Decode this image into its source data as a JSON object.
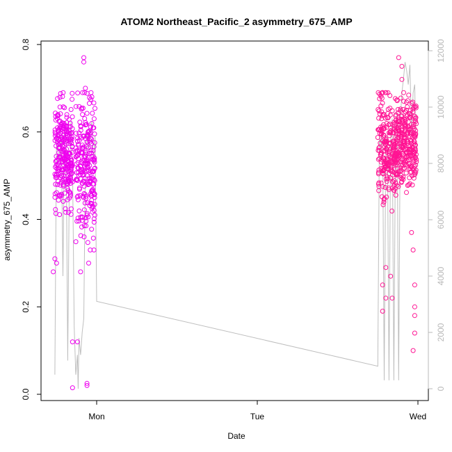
{
  "chart_data": {
    "type": "scatter",
    "title": "ATOM2 Northeast_Pacific_2 asymmetry_675_AMP",
    "xlabel": "Date",
    "ylabel": "asymmetry_675_AMP",
    "x_ticks": [
      "Mon",
      "Tue",
      "Wed"
    ],
    "x_range_days": [
      -0.3,
      2.02
    ],
    "ylim": [
      0.0,
      0.8
    ],
    "y_ticks": [
      "0.0",
      "0.2",
      "0.4",
      "0.6",
      "0.8"
    ],
    "y_tick_values": [
      0.0,
      0.2,
      0.4,
      0.6,
      0.8
    ],
    "y2lim": [
      0,
      12000
    ],
    "y2_ticks": [
      "0",
      "2000",
      "4000",
      "6000",
      "8000",
      "10000",
      "12000"
    ],
    "y2_tick_values": [
      0,
      2000,
      4000,
      6000,
      8000,
      10000,
      12000
    ],
    "colors": {
      "points_early": "#ee00ee",
      "points_late": "#ff1493",
      "line": "#bebebe",
      "right_axis": "#b8b8b8"
    },
    "scatter_clusters": [
      {
        "x_start": -0.26,
        "x_end": -0.15,
        "y_mean": 0.55,
        "y_spread": 0.06,
        "n": 260
      },
      {
        "x_start": -0.13,
        "x_end": -0.01,
        "y_mean": 0.52,
        "y_spread": 0.08,
        "n": 240
      },
      {
        "x_start": 1.75,
        "x_end": 1.87,
        "y_mean": 0.56,
        "y_spread": 0.06,
        "n": 240
      },
      {
        "x_start": 1.87,
        "x_end": 1.99,
        "y_mean": 0.58,
        "y_spread": 0.05,
        "n": 260
      }
    ],
    "scatter_outliers": [
      {
        "x": -0.27,
        "y": 0.28
      },
      {
        "x": -0.26,
        "y": 0.31
      },
      {
        "x": -0.25,
        "y": 0.3
      },
      {
        "x": -0.15,
        "y": 0.12
      },
      {
        "x": -0.15,
        "y": 0.015
      },
      {
        "x": -0.12,
        "y": 0.12
      },
      {
        "x": -0.08,
        "y": 0.77
      },
      {
        "x": -0.08,
        "y": 0.76
      },
      {
        "x": -0.07,
        "y": 0.7
      },
      {
        "x": -0.06,
        "y": 0.02
      },
      {
        "x": -0.06,
        "y": 0.025
      },
      {
        "x": -0.03,
        "y": 0.68
      },
      {
        "x": -0.05,
        "y": 0.3
      },
      {
        "x": -0.1,
        "y": 0.28
      },
      {
        "x": 1.78,
        "y": 0.19
      },
      {
        "x": 1.78,
        "y": 0.25
      },
      {
        "x": 1.8,
        "y": 0.22
      },
      {
        "x": 1.8,
        "y": 0.29
      },
      {
        "x": 1.83,
        "y": 0.27
      },
      {
        "x": 1.84,
        "y": 0.22
      },
      {
        "x": 1.88,
        "y": 0.77
      },
      {
        "x": 1.9,
        "y": 0.75
      },
      {
        "x": 1.9,
        "y": 0.72
      },
      {
        "x": 1.97,
        "y": 0.1
      },
      {
        "x": 1.98,
        "y": 0.14
      },
      {
        "x": 1.98,
        "y": 0.18
      },
      {
        "x": 1.98,
        "y": 0.2
      },
      {
        "x": 1.98,
        "y": 0.25
      },
      {
        "x": 1.97,
        "y": 0.33
      },
      {
        "x": 1.96,
        "y": 0.37
      }
    ],
    "line_series_right_axis": [
      [
        -0.26,
        500
      ],
      [
        -0.25,
        9200
      ],
      [
        -0.23,
        8100
      ],
      [
        -0.22,
        9000
      ],
      [
        -0.21,
        4000
      ],
      [
        -0.2,
        9300
      ],
      [
        -0.19,
        8800
      ],
      [
        -0.18,
        1000
      ],
      [
        -0.17,
        7500
      ],
      [
        -0.16,
        9500
      ],
      [
        -0.15,
        8000
      ],
      [
        -0.14,
        2200
      ],
      [
        -0.13,
        500
      ],
      [
        -0.12,
        1200
      ],
      [
        -0.115,
        0
      ],
      [
        -0.11,
        1800
      ],
      [
        -0.1,
        1200
      ],
      [
        -0.09,
        2000
      ],
      [
        -0.08,
        2500
      ],
      [
        -0.07,
        8000
      ],
      [
        -0.06,
        9200
      ],
      [
        -0.05,
        8500
      ],
      [
        -0.04,
        9000
      ],
      [
        -0.03,
        9500
      ],
      [
        -0.02,
        8000
      ],
      [
        -0.01,
        9000
      ],
      [
        0.0,
        3100
      ],
      [
        1.75,
        800
      ],
      [
        1.76,
        9000
      ],
      [
        1.77,
        8500
      ],
      [
        1.78,
        9300
      ],
      [
        1.79,
        300
      ],
      [
        1.8,
        8700
      ],
      [
        1.81,
        9000
      ],
      [
        1.82,
        300
      ],
      [
        1.83,
        8800
      ],
      [
        1.84,
        9600
      ],
      [
        1.85,
        300
      ],
      [
        1.86,
        9000
      ],
      [
        1.87,
        9800
      ],
      [
        1.88,
        300
      ],
      [
        1.89,
        9500
      ],
      [
        1.9,
        10500
      ],
      [
        1.91,
        11000
      ],
      [
        1.92,
        11600
      ],
      [
        1.93,
        11300
      ],
      [
        1.94,
        10800
      ],
      [
        1.95,
        11500
      ],
      [
        1.96,
        9000
      ],
      [
        1.97,
        10500
      ],
      [
        1.98,
        10800
      ],
      [
        1.99,
        7500
      ]
    ]
  }
}
